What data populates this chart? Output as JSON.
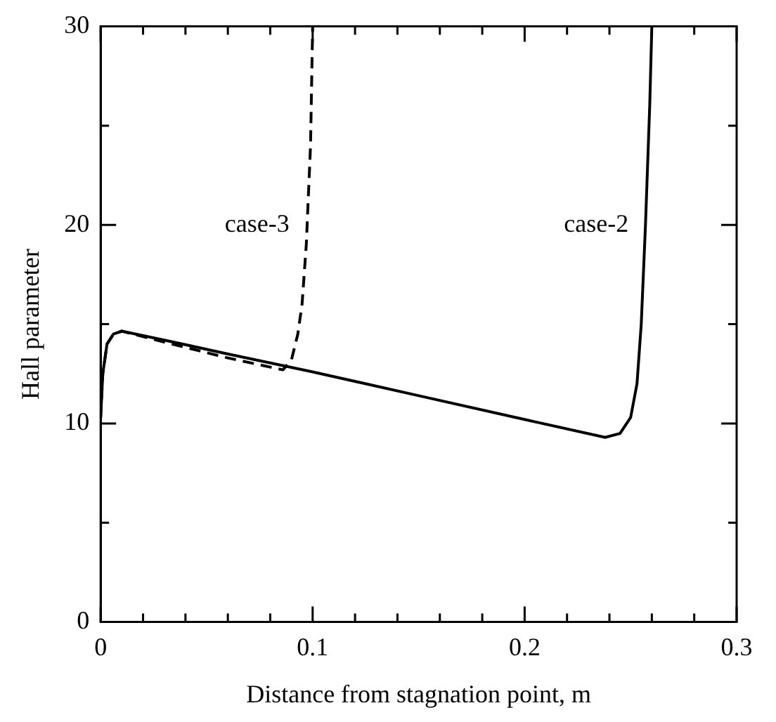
{
  "chart_data": {
    "type": "line",
    "xlabel": "Distance from stagnation point, m",
    "ylabel": "Hall parameter",
    "xlim": [
      0,
      0.3
    ],
    "ylim": [
      0,
      30
    ],
    "xticks": [
      0,
      {
        "value": 0.02,
        "label": null
      },
      {
        "value": 0.04,
        "label": null
      },
      {
        "value": 0.06,
        "label": null
      },
      {
        "value": 0.08,
        "label": null
      },
      0.1,
      {
        "value": 0.12,
        "label": null
      },
      {
        "value": 0.14,
        "label": null
      },
      {
        "value": 0.16,
        "label": null
      },
      {
        "value": 0.18,
        "label": null
      },
      0.2,
      {
        "value": 0.22,
        "label": null
      },
      {
        "value": 0.24,
        "label": null
      },
      {
        "value": 0.26,
        "label": null
      },
      {
        "value": 0.28,
        "label": null
      },
      0.3
    ],
    "yticks": [
      0,
      {
        "value": 5,
        "label": null
      },
      10,
      {
        "value": 15,
        "label": null
      },
      20,
      {
        "value": 25,
        "label": null
      },
      30
    ],
    "grid": false,
    "legend": false,
    "marker": "none",
    "series": [
      {
        "name": "case-2",
        "color": "#000000",
        "line_style": "solid",
        "x": [
          0,
          0.001,
          0.003,
          0.006,
          0.01,
          0.03,
          0.06,
          0.1,
          0.15,
          0.2,
          0.238,
          0.245,
          0.25,
          0.253,
          0.255,
          0.257,
          0.259,
          0.26
        ],
        "values": [
          10.3,
          12.5,
          14.0,
          14.5,
          14.65,
          14.2,
          13.5,
          12.6,
          11.4,
          10.2,
          9.3,
          9.5,
          10.3,
          12,
          15,
          20,
          26,
          30
        ]
      },
      {
        "name": "case-3",
        "color": "#000000",
        "line_style": "dashed",
        "x": [
          0,
          0.001,
          0.003,
          0.006,
          0.01,
          0.03,
          0.06,
          0.086,
          0.09,
          0.093,
          0.095,
          0.097,
          0.099,
          0.1
        ],
        "values": [
          10.3,
          12.5,
          14.0,
          14.5,
          14.65,
          14.1,
          13.3,
          12.7,
          13.2,
          14.5,
          16,
          19,
          24,
          30
        ]
      }
    ]
  }
}
